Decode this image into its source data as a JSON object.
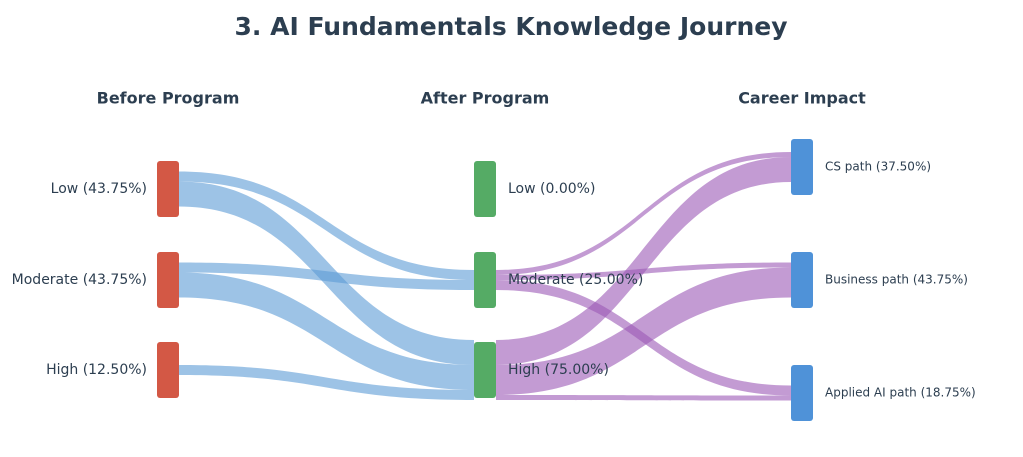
{
  "chart_data": {
    "type": "sankey",
    "title": "3. AI Fundamentals Knowledge Journey",
    "columns": [
      {
        "title": "Before Program",
        "color": "#d35845",
        "link_color": "#5b9bd5",
        "nodes": [
          "Low (43.75%)",
          "Moderate (43.75%)",
          "High (12.50%)"
        ]
      },
      {
        "title": "After Program",
        "color": "#55ab65",
        "link_color": "#9b59b6",
        "nodes": [
          "Low (0.00%)",
          "Moderate (25.00%)",
          "High (75.00%)"
        ]
      },
      {
        "title": "Career Impact",
        "color": "#4f92d8",
        "nodes": [
          "CS path (37.50%)",
          "Business path (43.75%)",
          "Applied AI path (18.75%)"
        ]
      }
    ],
    "links": [
      {
        "from": "Low (43.75%)",
        "to": "Moderate (25.00%)",
        "value": 12.5
      },
      {
        "from": "Low (43.75%)",
        "to": "High (75.00%)",
        "value": 31.25
      },
      {
        "from": "Moderate (43.75%)",
        "to": "Moderate (25.00%)",
        "value": 12.5
      },
      {
        "from": "Moderate (43.75%)",
        "to": "High (75.00%)",
        "value": 31.25
      },
      {
        "from": "High (12.50%)",
        "to": "High (75.00%)",
        "value": 12.5
      },
      {
        "from": "Moderate (25.00%)",
        "to": "CS path (37.50%)",
        "value": 6.25
      },
      {
        "from": "Moderate (25.00%)",
        "to": "Business path (43.75%)",
        "value": 6.25
      },
      {
        "from": "Moderate (25.00%)",
        "to": "Applied AI path (18.75%)",
        "value": 12.5
      },
      {
        "from": "High (75.00%)",
        "to": "CS path (37.50%)",
        "value": 31.25
      },
      {
        "from": "High (75.00%)",
        "to": "Business path (43.75%)",
        "value": 37.5
      },
      {
        "from": "High (75.00%)",
        "to": "Applied AI path (18.75%)",
        "value": 6.25
      }
    ]
  }
}
